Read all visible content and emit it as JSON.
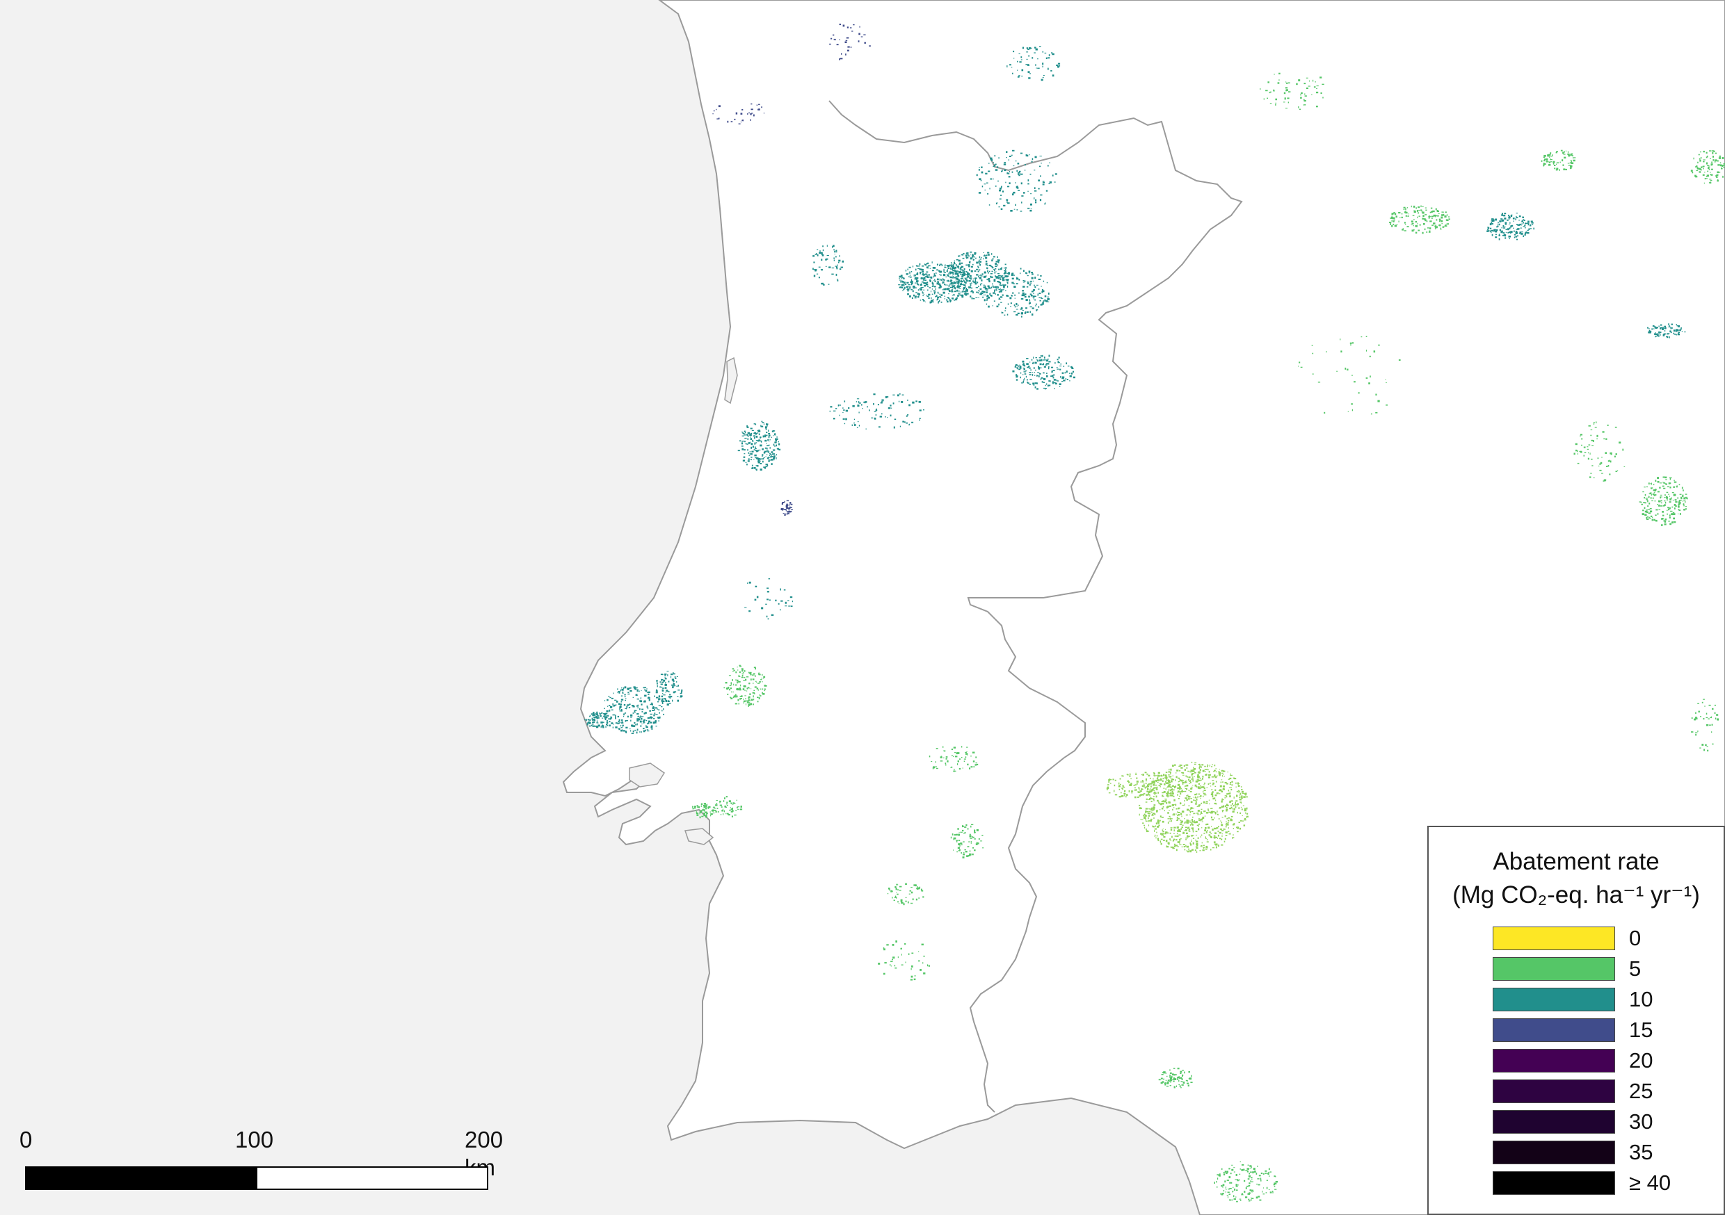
{
  "legend": {
    "title_line1": "Abatement rate",
    "title_line2": "(Mg CO₂-eq. ha⁻¹ yr⁻¹)",
    "classes": [
      {
        "label": "0",
        "color": "#fde725"
      },
      {
        "label": "5",
        "color": "#55c667"
      },
      {
        "label": "10",
        "color": "#218f8c"
      },
      {
        "label": "15",
        "color": "#404c8b"
      },
      {
        "label": "20",
        "color": "#440154"
      },
      {
        "label": "25",
        "color": "#2e0341"
      },
      {
        "label": "30",
        "color": "#1f0330"
      },
      {
        "label": "35",
        "color": "#130217"
      },
      {
        "label": "≥ 40",
        "color": "#000000"
      }
    ]
  },
  "scalebar": {
    "labels": [
      "0",
      "100",
      "200 km"
    ],
    "segment_colors": [
      "#000000",
      "#ffffff"
    ]
  },
  "colors": {
    "ocean": "#f2f2f2",
    "land": "#ffffff",
    "border": "#9a9a9a"
  }
}
